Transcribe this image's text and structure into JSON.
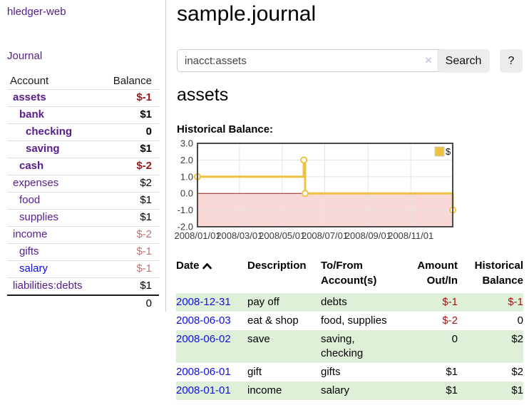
{
  "app": {
    "brand": "hledger-web",
    "nav_journal": "Journal"
  },
  "sidebar": {
    "header": {
      "account": "Account",
      "balance": "Balance"
    },
    "accounts": [
      {
        "name": "assets",
        "depth": 1,
        "balance": "$-1",
        "style": "neg",
        "bold": true,
        "link": "visited"
      },
      {
        "name": "bank",
        "depth": 2,
        "balance": "$1",
        "style": "pos",
        "bold": true,
        "link": "visited"
      },
      {
        "name": "checking",
        "depth": 3,
        "balance": "0",
        "style": "pos",
        "bold": true,
        "link": "visited"
      },
      {
        "name": "saving",
        "depth": 3,
        "balance": "$1",
        "style": "pos",
        "bold": true,
        "link": "visited"
      },
      {
        "name": "cash",
        "depth": 2,
        "balance": "$-2",
        "style": "neg",
        "bold": true,
        "link": "visited"
      },
      {
        "name": "expenses",
        "depth": 1,
        "balance": "$2",
        "style": "pos",
        "bold": false,
        "link": "visited"
      },
      {
        "name": "food",
        "depth": 2,
        "balance": "$1",
        "style": "pos",
        "bold": false,
        "link": "visited"
      },
      {
        "name": "supplies",
        "depth": 2,
        "balance": "$1",
        "style": "pos",
        "bold": false,
        "link": "visited"
      },
      {
        "name": "income",
        "depth": 1,
        "balance": "$-2",
        "style": "neg-light",
        "bold": false,
        "link": "visited"
      },
      {
        "name": "gifts",
        "depth": 2,
        "balance": "$-1",
        "style": "neg-light",
        "bold": false,
        "link": "visited"
      },
      {
        "name": "salary",
        "depth": 2,
        "balance": "$-1",
        "style": "neg-light",
        "bold": false,
        "link": "unvisited"
      },
      {
        "name": "liabilities:debts",
        "depth": 1,
        "balance": "$1",
        "style": "pos",
        "bold": false,
        "link": "visited"
      }
    ],
    "total": "0"
  },
  "main": {
    "title": "sample.journal",
    "search": {
      "value": "inacct:assets",
      "clear_label": "×",
      "button_label": "Search",
      "help_label": "?"
    },
    "account_title": "assets",
    "chart_label": "Historical Balance:"
  },
  "chart_data": {
    "type": "line",
    "step": true,
    "title": "Historical Balance:",
    "series": [
      {
        "name": "$",
        "color": "#EDC240",
        "points": [
          [
            "2008-01-01",
            1
          ],
          [
            "2008-06-01",
            2
          ],
          [
            "2008-06-03",
            0
          ],
          [
            "2008-12-31",
            -1
          ]
        ]
      }
    ],
    "xlim": [
      "2008-01-01",
      "2008-12-31"
    ],
    "ylim": [
      -2,
      3
    ],
    "yticks": [
      "3.0",
      "2.0",
      "1.0",
      "0.0",
      "-1.0",
      "-2.0"
    ],
    "ytick_values": [
      3,
      2,
      1,
      0,
      -1,
      -2
    ],
    "xticks": [
      "2008/01/01",
      "2008/03/01",
      "2008/05/01",
      "2008/07/01",
      "2008/09/01",
      "2008/11/01"
    ],
    "grid": true,
    "legend": {
      "position": "top-right",
      "label": "$"
    },
    "colors": {
      "line": "#EDC240",
      "marker_fill": "#ffffff",
      "negative_region": "#f9d8d8",
      "zero_line": "#8f2424",
      "gridline": "#e5e5e5",
      "plot_border": "#4a4a4a",
      "axis_text": "#3b3b3b"
    }
  },
  "register": {
    "headers": {
      "date": "Date",
      "description": "Description",
      "account": "To/From Account(s)",
      "amount": "Amount Out/In",
      "balance": "Historical Balance"
    },
    "sort": "ascending",
    "rows": [
      {
        "date": "2008-12-31",
        "description": "pay off",
        "account": "debts",
        "amount": "$-1",
        "amount_neg": true,
        "balance": "$-1",
        "balance_neg": true
      },
      {
        "date": "2008-06-03",
        "description": "eat & shop",
        "account": "food, supplies",
        "amount": "$-2",
        "amount_neg": true,
        "balance": "0",
        "balance_neg": false
      },
      {
        "date": "2008-06-02",
        "description": "save",
        "account": "saving, checking",
        "amount": "0",
        "amount_neg": false,
        "balance": "$2",
        "balance_neg": false
      },
      {
        "date": "2008-06-01",
        "description": "gift",
        "account": "gifts",
        "amount": "$1",
        "amount_neg": false,
        "balance": "$2",
        "balance_neg": false
      },
      {
        "date": "2008-01-01",
        "description": "income",
        "account": "salary",
        "amount": "$1",
        "amount_neg": false,
        "balance": "$1",
        "balance_neg": false
      }
    ]
  },
  "colors": {
    "link_visited": "#571c8d",
    "link_unvisited": "#0f0fe0",
    "negative": "#9e1414",
    "negative_light": "#bf7171",
    "row_stripe": "#dff0d8"
  }
}
